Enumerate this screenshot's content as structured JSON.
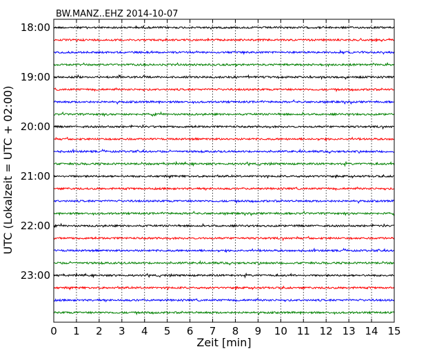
{
  "chart_data": {
    "type": "line",
    "title": "BW.MANZ..EHZ 2014-10-07",
    "xlabel": "Zeit  [min]",
    "ylabel": "UTC (Lokalzeit = UTC + 02:00)",
    "xlim": [
      0,
      15
    ],
    "x_ticks": [
      0,
      1,
      2,
      3,
      4,
      5,
      6,
      7,
      8,
      9,
      10,
      11,
      12,
      13,
      14,
      15
    ],
    "x_tick_labels": [
      "0",
      "1",
      "2",
      "3",
      "4",
      "5",
      "6",
      "7",
      "8",
      "9",
      "10",
      "11",
      "12",
      "13",
      "14",
      "15"
    ],
    "y_tick_labels": [
      "18:00",
      "19:00",
      "20:00",
      "21:00",
      "22:00",
      "23:00"
    ],
    "grid": "x-dotted",
    "trace_start_times": [
      "18:00",
      "18:15",
      "18:30",
      "18:45",
      "19:00",
      "19:15",
      "19:30",
      "19:45",
      "20:00",
      "20:15",
      "20:30",
      "20:45",
      "21:00",
      "21:15",
      "21:30",
      "21:45",
      "22:00",
      "22:15",
      "22:30",
      "22:45",
      "23:00",
      "23:15",
      "23:30",
      "23:45"
    ],
    "trace_colors": [
      "#000000",
      "#ff0000",
      "#0000ff",
      "#008000"
    ]
  }
}
